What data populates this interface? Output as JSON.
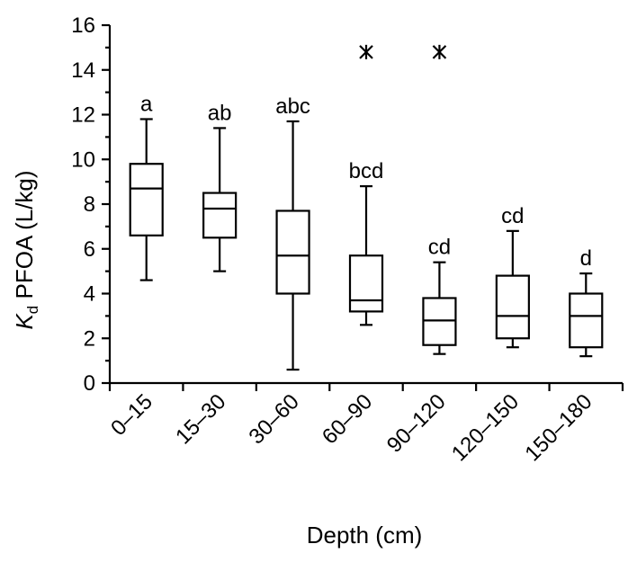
{
  "chart_data": {
    "type": "box",
    "title": "",
    "xlabel": "Depth (cm)",
    "ylabel": {
      "prefix": "K",
      "subscript": "d",
      "suffix": " PFOA (L/kg)"
    },
    "ylim": [
      0,
      16
    ],
    "yticks": [
      "0",
      "2",
      "4",
      "6",
      "8",
      "10",
      "12",
      "14",
      "16"
    ],
    "grid": false,
    "categories": [
      "0–15",
      "15–30",
      "30–60",
      "60–90",
      "90–120",
      "120–150",
      "150–180"
    ],
    "groups": [
      {
        "category": "0–15",
        "label": "a",
        "min": 4.6,
        "q1": 6.6,
        "median": 8.7,
        "q3": 9.8,
        "max": 11.8,
        "outliers": []
      },
      {
        "category": "15–30",
        "label": "ab",
        "min": 5.0,
        "q1": 6.5,
        "median": 7.8,
        "q3": 8.5,
        "max": 11.4,
        "outliers": []
      },
      {
        "category": "30–60",
        "label": "abc",
        "min": 0.6,
        "q1": 4.0,
        "median": 5.7,
        "q3": 7.7,
        "max": 11.7,
        "outliers": []
      },
      {
        "category": "60–90",
        "label": "bcd",
        "min": 2.6,
        "q1": 3.2,
        "median": 3.7,
        "q3": 5.7,
        "max": 8.8,
        "outliers": [
          14.8
        ]
      },
      {
        "category": "90–120",
        "label": "cd",
        "min": 1.3,
        "q1": 1.7,
        "median": 2.8,
        "q3": 3.8,
        "max": 5.4,
        "outliers": [
          14.8
        ]
      },
      {
        "category": "120–150",
        "label": "cd",
        "min": 1.6,
        "q1": 2.0,
        "median": 3.0,
        "q3": 4.8,
        "max": 6.8,
        "outliers": []
      },
      {
        "category": "150–180",
        "label": "d",
        "min": 1.2,
        "q1": 1.6,
        "median": 3.0,
        "q3": 4.0,
        "max": 4.9,
        "outliers": []
      }
    ]
  }
}
